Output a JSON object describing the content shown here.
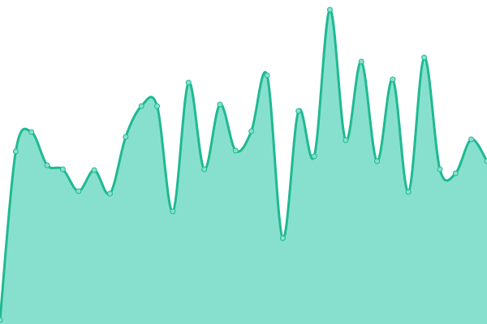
{
  "chart_data": {
    "type": "area",
    "categories": [
      null,
      null,
      null,
      null,
      null,
      null,
      null,
      null,
      null,
      null,
      null,
      null,
      null,
      null,
      null,
      null,
      null,
      null,
      null,
      null,
      null,
      null,
      null,
      null,
      null,
      null,
      null,
      null,
      null,
      null,
      null,
      null
    ],
    "values": [
      5,
      213,
      237,
      196,
      191,
      164,
      190,
      161,
      231,
      269,
      269,
      139,
      298,
      191,
      271,
      214,
      238,
      307,
      106,
      263,
      207,
      388,
      227,
      324,
      201,
      302,
      163,
      329,
      191,
      186,
      228,
      201
    ],
    "ylim": [
      0,
      400
    ],
    "color": "#1fb992",
    "fill": "#87e0cd"
  }
}
